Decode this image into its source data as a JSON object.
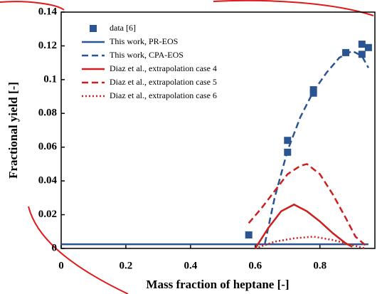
{
  "chart_data": {
    "type": "line",
    "xlabel": "Mass fraction of heptane [-]",
    "ylabel": "Fractional yield [-]",
    "xlim": [
      0,
      0.97
    ],
    "ylim": [
      0,
      0.14
    ],
    "xticks": [
      0,
      0.2,
      0.4,
      0.6,
      0.8
    ],
    "yticks": [
      0,
      0.02,
      0.04,
      0.06,
      0.08,
      0.1,
      0.12,
      0.14
    ],
    "legend": "upper-left",
    "series": [
      {
        "name": "data [6]",
        "color": "#2b5592",
        "style": "markers",
        "x": [
          0.58,
          0.7,
          0.7,
          0.78,
          0.78,
          0.88,
          0.93,
          0.93,
          0.95
        ],
        "values": [
          0.008,
          0.057,
          0.064,
          0.092,
          0.094,
          0.116,
          0.115,
          0.121,
          0.119
        ]
      },
      {
        "name": "This work, PR-EOS",
        "color": "#2b5592",
        "style": "solid",
        "x": [
          0,
          0.95
        ],
        "values": [
          0.0025,
          0.0025
        ]
      },
      {
        "name": "This work, CPA-EOS",
        "color": "#2b5592",
        "style": "dashed",
        "x": [
          0.63,
          0.66,
          0.7,
          0.74,
          0.78,
          0.82,
          0.86,
          0.9,
          0.93,
          0.95
        ],
        "values": [
          0.003,
          0.03,
          0.058,
          0.078,
          0.093,
          0.104,
          0.113,
          0.117,
          0.114,
          0.107
        ]
      },
      {
        "name": "Diaz et al., extrapolation case 4",
        "color": "#cc1f1f",
        "style": "solid",
        "x": [
          0.6,
          0.64,
          0.68,
          0.72,
          0.76,
          0.8,
          0.84,
          0.88,
          0.9
        ],
        "values": [
          0.0,
          0.012,
          0.022,
          0.026,
          0.022,
          0.016,
          0.009,
          0.003,
          0.001
        ]
      },
      {
        "name": "Diaz et al., extrapolation case 5",
        "color": "#cc1f1f",
        "style": "dashed",
        "x": [
          0.58,
          0.62,
          0.66,
          0.7,
          0.74,
          0.76,
          0.8,
          0.84,
          0.88,
          0.91,
          0.94
        ],
        "values": [
          0.015,
          0.024,
          0.034,
          0.044,
          0.049,
          0.05,
          0.044,
          0.032,
          0.018,
          0.007,
          0.002
        ]
      },
      {
        "name": "Diaz et al., extrapolation case 6",
        "color": "#cc1f1f",
        "style": "dotted",
        "x": [
          0.6,
          0.66,
          0.72,
          0.78,
          0.84,
          0.9,
          0.94
        ],
        "values": [
          0.0,
          0.004,
          0.006,
          0.007,
          0.005,
          0.002,
          0.0
        ]
      }
    ]
  }
}
